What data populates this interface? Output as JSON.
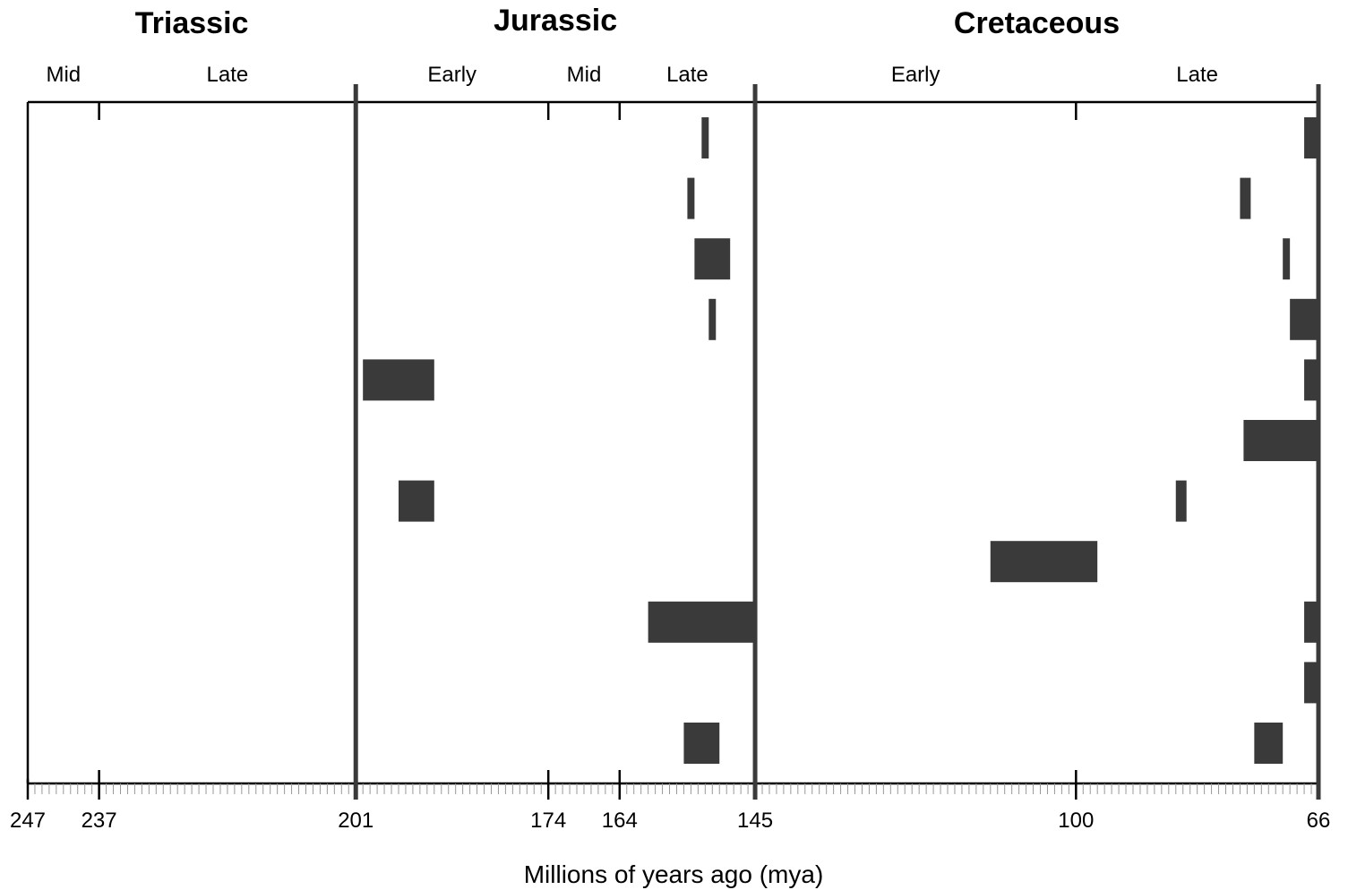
{
  "chart_data": {
    "type": "bar",
    "orientation": "horizontal-range",
    "xlabel": "Millions of years ago (mya)",
    "x_axis": "reversed",
    "xlim": [
      247,
      66
    ],
    "tick_values": [
      247,
      237,
      201,
      174,
      164,
      145,
      100,
      66
    ],
    "tick_labels": [
      "247",
      "237",
      "201",
      "174",
      "164",
      "145",
      "100",
      "66"
    ],
    "periods": [
      {
        "name": "Triassic",
        "start": 247,
        "end": 201
      },
      {
        "name": "Jurassic",
        "start": 201,
        "end": 145
      },
      {
        "name": "Cretaceous",
        "start": 145,
        "end": 66
      }
    ],
    "epochs": [
      {
        "name": "Mid",
        "start": 247,
        "end": 237
      },
      {
        "name": "Late",
        "start": 237,
        "end": 201
      },
      {
        "name": "Early",
        "start": 201,
        "end": 174
      },
      {
        "name": "Mid",
        "start": 174,
        "end": 164
      },
      {
        "name": "Late",
        "start": 164,
        "end": 145
      },
      {
        "name": "Early",
        "start": 145,
        "end": 100
      },
      {
        "name": "Late",
        "start": 100,
        "end": 66
      }
    ],
    "rows": 11,
    "ranges": [
      {
        "row": 1,
        "start": 152.5,
        "end": 151.5
      },
      {
        "row": 1,
        "start": 68,
        "end": 66
      },
      {
        "row": 2,
        "start": 154.5,
        "end": 153.5
      },
      {
        "row": 2,
        "start": 77,
        "end": 75.5
      },
      {
        "row": 3,
        "start": 153.5,
        "end": 148.5
      },
      {
        "row": 3,
        "start": 71,
        "end": 70
      },
      {
        "row": 4,
        "start": 151.5,
        "end": 150.5
      },
      {
        "row": 4,
        "start": 70,
        "end": 66
      },
      {
        "row": 5,
        "start": 200,
        "end": 190
      },
      {
        "row": 5,
        "start": 68,
        "end": 66
      },
      {
        "row": 6,
        "start": 76.5,
        "end": 66
      },
      {
        "row": 7,
        "start": 195,
        "end": 190
      },
      {
        "row": 7,
        "start": 86,
        "end": 84.5
      },
      {
        "row": 8,
        "start": 112,
        "end": 97
      },
      {
        "row": 9,
        "start": 160,
        "end": 145
      },
      {
        "row": 9,
        "start": 68,
        "end": 66
      },
      {
        "row": 10,
        "start": 68,
        "end": 66
      },
      {
        "row": 11,
        "start": 155,
        "end": 150
      },
      {
        "row": 11,
        "start": 75,
        "end": 71
      }
    ],
    "colors": {
      "bar": "#3a3a3a",
      "axis": "#000000",
      "boundary": "#3a3a3a",
      "minor_tick": "#999999"
    }
  }
}
